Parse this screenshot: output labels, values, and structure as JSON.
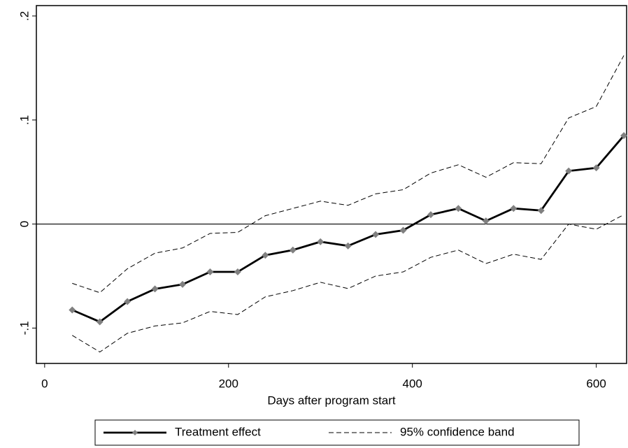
{
  "chart_data": {
    "type": "line",
    "x_label": "Days after program start",
    "x": [
      30,
      60,
      90,
      120,
      150,
      180,
      210,
      240,
      270,
      300,
      330,
      360,
      390,
      420,
      450,
      480,
      510,
      540,
      570,
      600,
      630
    ],
    "series": [
      {
        "name": "Treatment effect",
        "color": "#000000",
        "marker_color": "#808080",
        "values": [
          -0.0826,
          -0.094,
          -0.0745,
          -0.0624,
          -0.058,
          -0.046,
          -0.046,
          -0.03,
          -0.025,
          -0.017,
          -0.021,
          -0.01,
          -0.006,
          0.009,
          0.015,
          0.003,
          0.015,
          0.013,
          0.051,
          0.054,
          0.085
        ]
      },
      {
        "name": "95% confidence band",
        "color": "#000000",
        "upper": [
          -0.057,
          -0.066,
          -0.043,
          -0.028,
          -0.023,
          -0.009,
          -0.008,
          0.008,
          0.015,
          0.022,
          0.018,
          0.029,
          0.033,
          0.049,
          0.057,
          0.045,
          0.059,
          0.058,
          0.102,
          0.113,
          0.162
        ],
        "lower": [
          -0.107,
          -0.123,
          -0.105,
          -0.098,
          -0.095,
          -0.084,
          -0.087,
          -0.07,
          -0.064,
          -0.056,
          -0.062,
          -0.05,
          -0.046,
          -0.032,
          -0.025,
          -0.038,
          -0.029,
          -0.034,
          0.0,
          -0.005,
          0.009
        ]
      }
    ],
    "hline": 0,
    "xlim": [
      -9,
      633
    ],
    "ylim": [
      -0.134,
      0.21
    ],
    "xticks": [
      0,
      200,
      400,
      600
    ],
    "yticks": [
      {
        "value": -0.1,
        "label": "-.1"
      },
      0,
      {
        "value": 0.1,
        "label": ".1"
      },
      {
        "value": 0.2,
        "label": ".2"
      }
    ],
    "legend": "bottom"
  }
}
